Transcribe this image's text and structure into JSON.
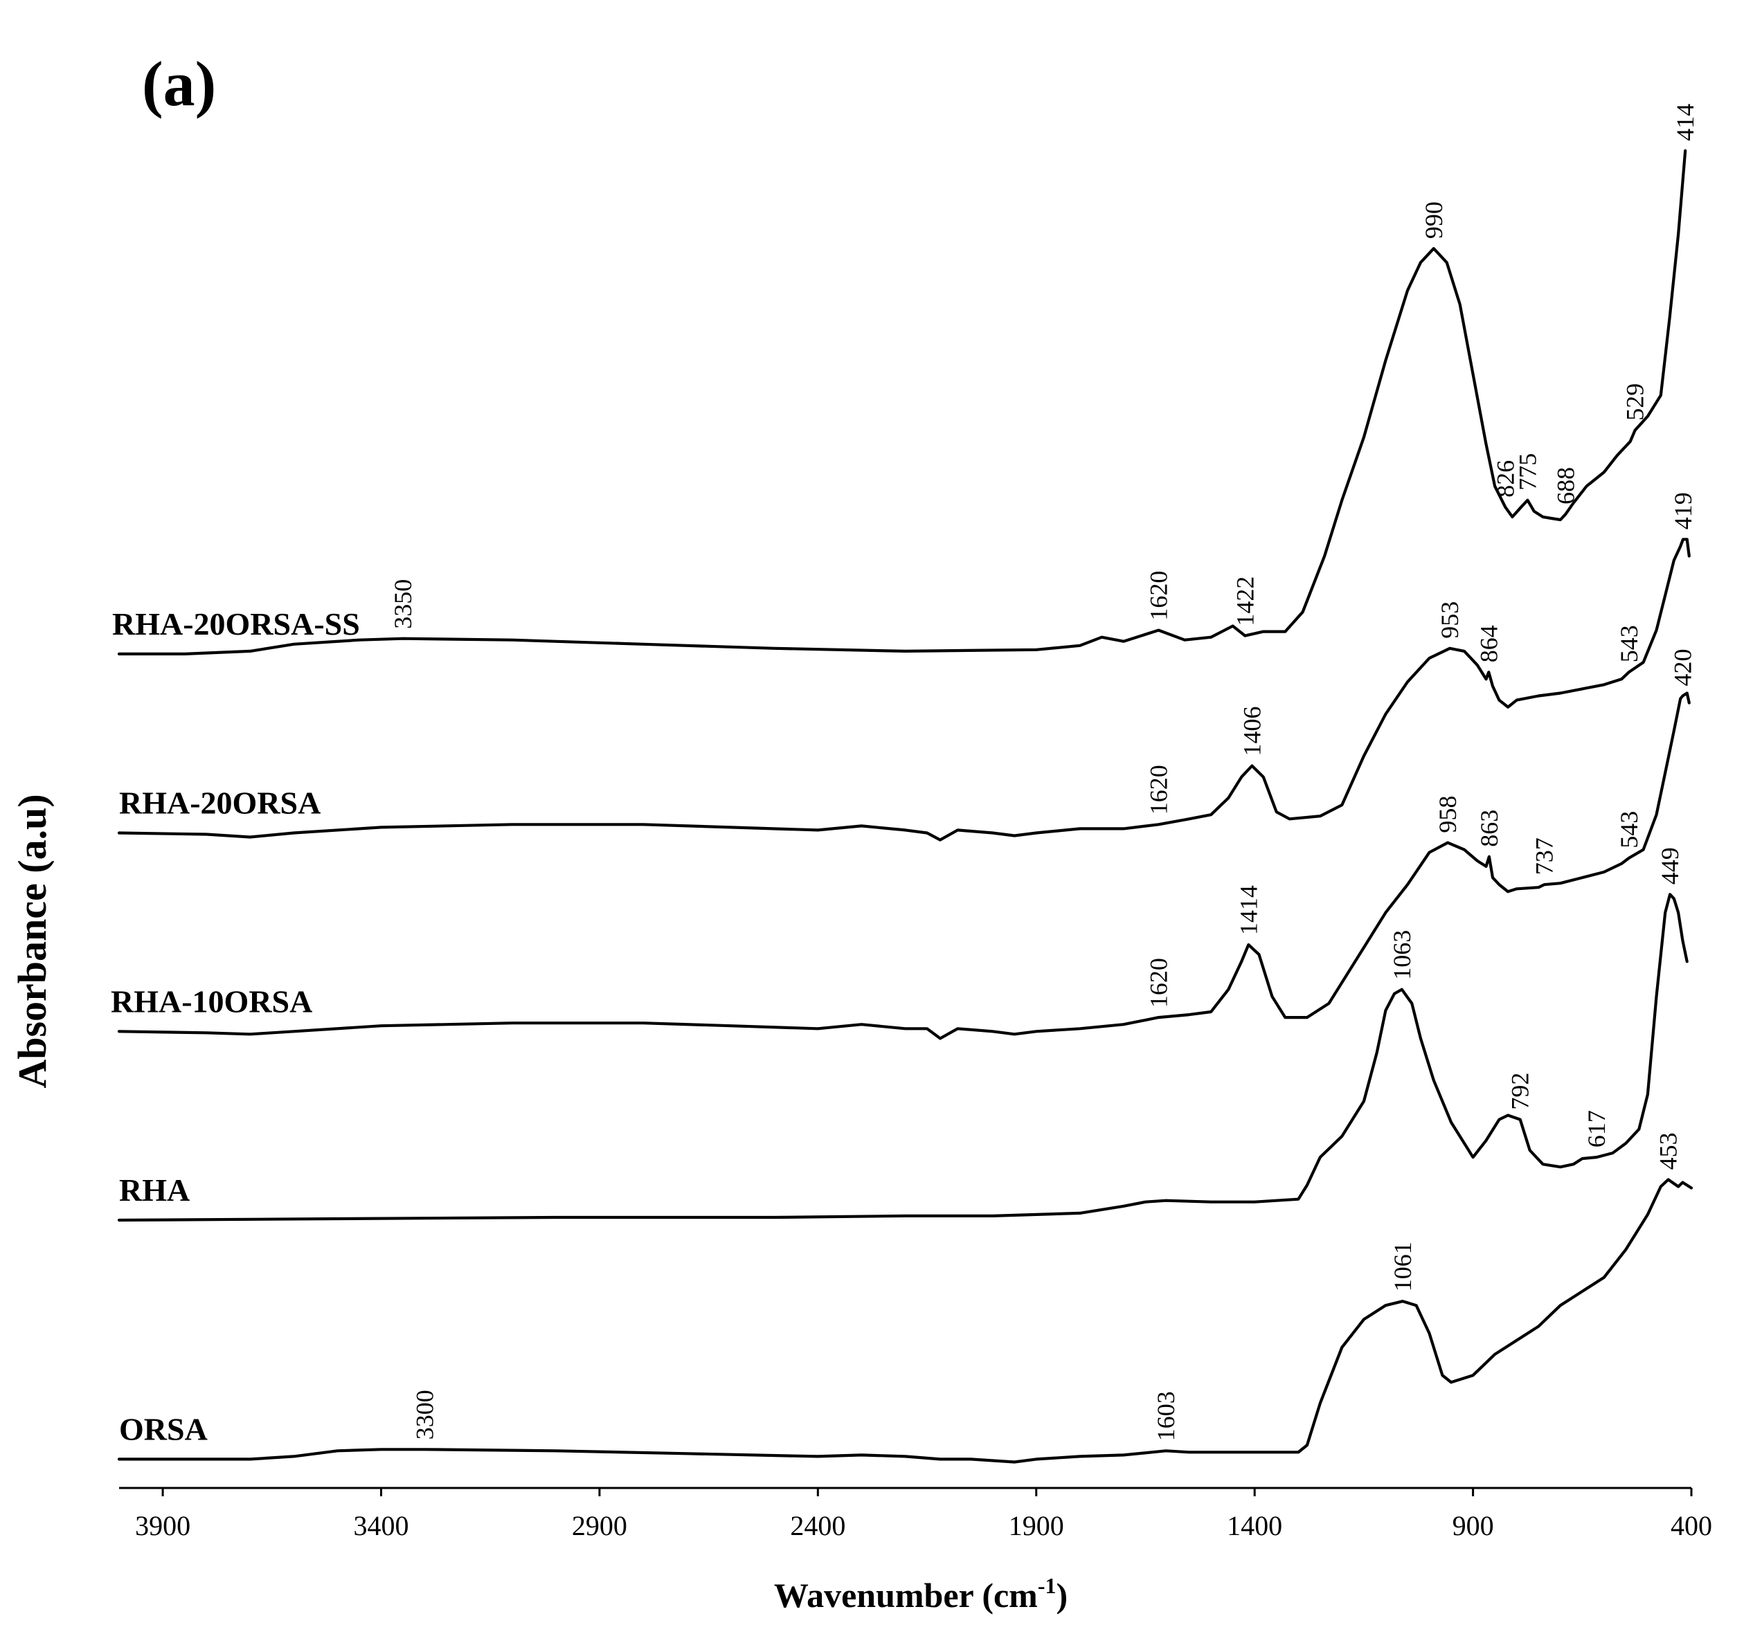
{
  "chart_data": {
    "type": "line",
    "panel_label": "(a)",
    "xlabel_text": "Wavenumber (cm",
    "xlabel_sup": "-1",
    "xlabel_close": ")",
    "ylabel": "Absorbance (a.u)",
    "xlim": [
      4000,
      400
    ],
    "xticks": [
      3900,
      3400,
      2900,
      2400,
      1900,
      1400,
      900,
      400
    ],
    "y_units": "stacked, arbitrary",
    "series": [
      {
        "name": "RHA-20ORSA-SS",
        "offset": 4.05,
        "points": [
          [
            4000,
            0
          ],
          [
            3850,
            0
          ],
          [
            3700,
            0.02
          ],
          [
            3600,
            0.07
          ],
          [
            3450,
            0.1
          ],
          [
            3350,
            0.11
          ],
          [
            3100,
            0.1
          ],
          [
            2800,
            0.07
          ],
          [
            2500,
            0.04
          ],
          [
            2200,
            0.02
          ],
          [
            1900,
            0.03
          ],
          [
            1800,
            0.06
          ],
          [
            1750,
            0.12
          ],
          [
            1700,
            0.09
          ],
          [
            1620,
            0.17
          ],
          [
            1560,
            0.1
          ],
          [
            1500,
            0.12
          ],
          [
            1450,
            0.2
          ],
          [
            1422,
            0.13
          ],
          [
            1380,
            0.16
          ],
          [
            1330,
            0.16
          ],
          [
            1290,
            0.3
          ],
          [
            1240,
            0.7
          ],
          [
            1200,
            1.1
          ],
          [
            1150,
            1.55
          ],
          [
            1100,
            2.1
          ],
          [
            1050,
            2.6
          ],
          [
            1020,
            2.8
          ],
          [
            990,
            2.9
          ],
          [
            960,
            2.8
          ],
          [
            930,
            2.5
          ],
          [
            900,
            2.0
          ],
          [
            870,
            1.5
          ],
          [
            850,
            1.2
          ],
          [
            826,
            1.05
          ],
          [
            810,
            0.98
          ],
          [
            790,
            1.05
          ],
          [
            775,
            1.1
          ],
          [
            760,
            1.02
          ],
          [
            740,
            0.98
          ],
          [
            720,
            0.97
          ],
          [
            700,
            0.96
          ],
          [
            688,
            1.0
          ],
          [
            670,
            1.08
          ],
          [
            640,
            1.2
          ],
          [
            600,
            1.3
          ],
          [
            570,
            1.42
          ],
          [
            540,
            1.52
          ],
          [
            529,
            1.6
          ],
          [
            500,
            1.7
          ],
          [
            470,
            1.85
          ],
          [
            450,
            2.4
          ],
          [
            430,
            3.0
          ],
          [
            414,
            3.6
          ]
        ],
        "peak_labels": [
          {
            "label": "3350",
            "x": 3350
          },
          {
            "label": "1620",
            "x": 1620
          },
          {
            "label": "1422",
            "x": 1422
          },
          {
            "label": "990",
            "x": 990
          },
          {
            "label": "826",
            "x": 826
          },
          {
            "label": "775",
            "x": 775
          },
          {
            "label": "688",
            "x": 688
          },
          {
            "label": "529",
            "x": 529
          },
          {
            "label": "414",
            "x": 414
          }
        ]
      },
      {
        "name": "RHA-20ORSA",
        "offset": 2.77,
        "points": [
          [
            4000,
            0
          ],
          [
            3800,
            -0.01
          ],
          [
            3700,
            -0.03
          ],
          [
            3600,
            0.0
          ],
          [
            3400,
            0.04
          ],
          [
            3100,
            0.06
          ],
          [
            2800,
            0.06
          ],
          [
            2600,
            0.04
          ],
          [
            2400,
            0.02
          ],
          [
            2300,
            0.05
          ],
          [
            2200,
            0.02
          ],
          [
            2150,
            0.0
          ],
          [
            2120,
            -0.05
          ],
          [
            2080,
            0.02
          ],
          [
            2000,
            0.0
          ],
          [
            1950,
            -0.02
          ],
          [
            1900,
            0.0
          ],
          [
            1800,
            0.03
          ],
          [
            1700,
            0.03
          ],
          [
            1620,
            0.06
          ],
          [
            1550,
            0.1
          ],
          [
            1500,
            0.13
          ],
          [
            1460,
            0.25
          ],
          [
            1430,
            0.4
          ],
          [
            1406,
            0.48
          ],
          [
            1380,
            0.4
          ],
          [
            1350,
            0.15
          ],
          [
            1320,
            0.1
          ],
          [
            1250,
            0.12
          ],
          [
            1200,
            0.2
          ],
          [
            1150,
            0.55
          ],
          [
            1100,
            0.85
          ],
          [
            1050,
            1.08
          ],
          [
            1000,
            1.25
          ],
          [
            953,
            1.32
          ],
          [
            920,
            1.3
          ],
          [
            890,
            1.2
          ],
          [
            870,
            1.1
          ],
          [
            864,
            1.15
          ],
          [
            855,
            1.05
          ],
          [
            840,
            0.95
          ],
          [
            820,
            0.9
          ],
          [
            800,
            0.95
          ],
          [
            750,
            0.98
          ],
          [
            700,
            1.0
          ],
          [
            650,
            1.03
          ],
          [
            600,
            1.06
          ],
          [
            560,
            1.1
          ],
          [
            543,
            1.15
          ],
          [
            510,
            1.22
          ],
          [
            480,
            1.45
          ],
          [
            460,
            1.7
          ],
          [
            440,
            1.95
          ],
          [
            425,
            2.05
          ],
          [
            419,
            2.1
          ],
          [
            410,
            2.1
          ],
          [
            405,
            1.98
          ]
        ],
        "peak_labels": [
          {
            "label": "1620",
            "x": 1620
          },
          {
            "label": "1406",
            "x": 1406
          },
          {
            "label": "953",
            "x": 953
          },
          {
            "label": "864",
            "x": 864
          },
          {
            "label": "543",
            "x": 543
          },
          {
            "label": "419",
            "x": 419
          }
        ]
      },
      {
        "name": "RHA-10ORSA",
        "offset": 1.35,
        "points": [
          [
            4000,
            0
          ],
          [
            3800,
            -0.01
          ],
          [
            3700,
            -0.02
          ],
          [
            3600,
            0.0
          ],
          [
            3400,
            0.04
          ],
          [
            3100,
            0.06
          ],
          [
            2800,
            0.06
          ],
          [
            2600,
            0.04
          ],
          [
            2400,
            0.02
          ],
          [
            2300,
            0.05
          ],
          [
            2200,
            0.02
          ],
          [
            2150,
            0.02
          ],
          [
            2120,
            -0.05
          ],
          [
            2080,
            0.02
          ],
          [
            2000,
            0.0
          ],
          [
            1950,
            -0.02
          ],
          [
            1900,
            0.0
          ],
          [
            1800,
            0.02
          ],
          [
            1700,
            0.05
          ],
          [
            1620,
            0.1
          ],
          [
            1550,
            0.12
          ],
          [
            1500,
            0.14
          ],
          [
            1460,
            0.3
          ],
          [
            1430,
            0.5
          ],
          [
            1414,
            0.62
          ],
          [
            1390,
            0.55
          ],
          [
            1360,
            0.25
          ],
          [
            1330,
            0.1
          ],
          [
            1280,
            0.1
          ],
          [
            1230,
            0.2
          ],
          [
            1150,
            0.6
          ],
          [
            1100,
            0.85
          ],
          [
            1050,
            1.05
          ],
          [
            1000,
            1.28
          ],
          [
            958,
            1.35
          ],
          [
            920,
            1.3
          ],
          [
            890,
            1.22
          ],
          [
            870,
            1.18
          ],
          [
            863,
            1.25
          ],
          [
            855,
            1.1
          ],
          [
            840,
            1.05
          ],
          [
            820,
            1.0
          ],
          [
            800,
            1.02
          ],
          [
            750,
            1.03
          ],
          [
            737,
            1.05
          ],
          [
            700,
            1.06
          ],
          [
            650,
            1.1
          ],
          [
            600,
            1.14
          ],
          [
            560,
            1.2
          ],
          [
            543,
            1.24
          ],
          [
            510,
            1.3
          ],
          [
            480,
            1.55
          ],
          [
            460,
            1.85
          ],
          [
            440,
            2.15
          ],
          [
            425,
            2.38
          ],
          [
            420,
            2.4
          ],
          [
            410,
            2.42
          ],
          [
            405,
            2.35
          ]
        ],
        "peak_labels": [
          {
            "label": "1620",
            "x": 1620
          },
          {
            "label": "1414",
            "x": 1414
          },
          {
            "label": "958",
            "x": 958
          },
          {
            "label": "863",
            "x": 863
          },
          {
            "label": "737",
            "x": 737
          },
          {
            "label": "543",
            "x": 543
          },
          {
            "label": "420",
            "x": 420
          }
        ]
      },
      {
        "name": "RHA",
        "offset": 0.0,
        "points": [
          [
            4000,
            0
          ],
          [
            3500,
            0.01
          ],
          [
            3000,
            0.02
          ],
          [
            2500,
            0.02
          ],
          [
            2200,
            0.03
          ],
          [
            2000,
            0.03
          ],
          [
            1800,
            0.05
          ],
          [
            1700,
            0.1
          ],
          [
            1650,
            0.13
          ],
          [
            1603,
            0.14
          ],
          [
            1500,
            0.13
          ],
          [
            1400,
            0.13
          ],
          [
            1300,
            0.15
          ],
          [
            1280,
            0.25
          ],
          [
            1250,
            0.45
          ],
          [
            1200,
            0.6
          ],
          [
            1150,
            0.85
          ],
          [
            1120,
            1.2
          ],
          [
            1100,
            1.5
          ],
          [
            1080,
            1.62
          ],
          [
            1063,
            1.65
          ],
          [
            1040,
            1.55
          ],
          [
            1020,
            1.3
          ],
          [
            990,
            1.0
          ],
          [
            950,
            0.7
          ],
          [
            900,
            0.45
          ],
          [
            870,
            0.57
          ],
          [
            840,
            0.72
          ],
          [
            820,
            0.75
          ],
          [
            792,
            0.72
          ],
          [
            770,
            0.5
          ],
          [
            740,
            0.4
          ],
          [
            700,
            0.38
          ],
          [
            670,
            0.4
          ],
          [
            650,
            0.44
          ],
          [
            617,
            0.45
          ],
          [
            580,
            0.48
          ],
          [
            550,
            0.55
          ],
          [
            520,
            0.65
          ],
          [
            500,
            0.9
          ],
          [
            480,
            1.6
          ],
          [
            460,
            2.2
          ],
          [
            449,
            2.33
          ],
          [
            440,
            2.3
          ],
          [
            430,
            2.2
          ],
          [
            420,
            2.0
          ],
          [
            410,
            1.85
          ]
        ],
        "peak_labels": [
          {
            "label": "1063",
            "x": 1063
          },
          {
            "label": "792",
            "x": 792
          },
          {
            "label": "617",
            "x": 617
          },
          {
            "label": "449",
            "x": 449
          }
        ]
      },
      {
        "name": "ORSA",
        "offset": -1.71,
        "points": [
          [
            4000,
            0
          ],
          [
            3700,
            0.0
          ],
          [
            3600,
            0.02
          ],
          [
            3500,
            0.06
          ],
          [
            3400,
            0.07
          ],
          [
            3300,
            0.07
          ],
          [
            3000,
            0.06
          ],
          [
            2700,
            0.04
          ],
          [
            2400,
            0.02
          ],
          [
            2300,
            0.03
          ],
          [
            2200,
            0.02
          ],
          [
            2120,
            0.0
          ],
          [
            2050,
            0.0
          ],
          [
            1950,
            -0.02
          ],
          [
            1900,
            0.0
          ],
          [
            1800,
            0.02
          ],
          [
            1700,
            0.03
          ],
          [
            1603,
            0.06
          ],
          [
            1550,
            0.05
          ],
          [
            1450,
            0.05
          ],
          [
            1350,
            0.05
          ],
          [
            1300,
            0.05
          ],
          [
            1280,
            0.1
          ],
          [
            1250,
            0.4
          ],
          [
            1200,
            0.8
          ],
          [
            1150,
            1.0
          ],
          [
            1100,
            1.1
          ],
          [
            1061,
            1.13
          ],
          [
            1030,
            1.1
          ],
          [
            1000,
            0.9
          ],
          [
            970,
            0.6
          ],
          [
            950,
            0.55
          ],
          [
            900,
            0.6
          ],
          [
            850,
            0.75
          ],
          [
            800,
            0.85
          ],
          [
            750,
            0.95
          ],
          [
            700,
            1.1
          ],
          [
            650,
            1.2
          ],
          [
            600,
            1.3
          ],
          [
            550,
            1.5
          ],
          [
            500,
            1.75
          ],
          [
            470,
            1.95
          ],
          [
            453,
            2.0
          ],
          [
            430,
            1.95
          ],
          [
            420,
            1.98
          ],
          [
            410,
            1.96
          ],
          [
            400,
            1.94
          ]
        ],
        "peak_labels": [
          {
            "label": "3300",
            "x": 3300
          },
          {
            "label": "1603",
            "x": 1603
          },
          {
            "label": "1061",
            "x": 1061
          },
          {
            "label": "453",
            "x": 453
          }
        ]
      }
    ]
  }
}
